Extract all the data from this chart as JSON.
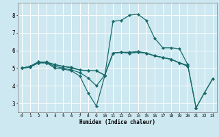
{
  "xlabel": "Humidex (Indice chaleur)",
  "ylabel": "",
  "background_color": "#cde8f0",
  "grid_color": "#ffffff",
  "line_color": "#1a6b6b",
  "xlim": [
    -0.5,
    23.5
  ],
  "ylim": [
    2.5,
    8.7
  ],
  "xticks": [
    0,
    1,
    2,
    3,
    4,
    5,
    6,
    7,
    8,
    9,
    10,
    11,
    12,
    13,
    14,
    15,
    16,
    17,
    18,
    19,
    20,
    21,
    22,
    23
  ],
  "yticks": [
    3,
    4,
    5,
    6,
    7,
    8
  ],
  "lines": [
    {
      "x": [
        0,
        1,
        2,
        3,
        4,
        5,
        6,
        7,
        8,
        9,
        10,
        11,
        12,
        13,
        14,
        15,
        16,
        17,
        18,
        19,
        20,
        21,
        22,
        23
      ],
      "y": [
        5.0,
        5.05,
        5.3,
        5.3,
        5.1,
        5.0,
        4.9,
        4.75,
        4.45,
        4.0,
        4.6,
        5.85,
        5.9,
        5.85,
        5.9,
        5.85,
        5.7,
        5.6,
        5.5,
        5.3,
        5.15,
        2.75,
        3.6,
        4.4
      ]
    },
    {
      "x": [
        0,
        1,
        2,
        3,
        4,
        5,
        6,
        7,
        8,
        9,
        10,
        11,
        12,
        13,
        14,
        15,
        16,
        17,
        18,
        19,
        20,
        21,
        22,
        23
      ],
      "y": [
        5.0,
        5.05,
        5.3,
        5.3,
        5.0,
        4.95,
        4.85,
        4.55,
        3.6,
        2.85,
        4.55,
        7.65,
        7.7,
        8.0,
        8.05,
        7.7,
        6.7,
        6.15,
        6.15,
        6.1,
        5.2,
        2.75,
        3.6,
        4.4
      ]
    },
    {
      "x": [
        0,
        1,
        2,
        3,
        4,
        5,
        6,
        7,
        8,
        9,
        10,
        11,
        12,
        13,
        14,
        15,
        16,
        17,
        18,
        19,
        20
      ],
      "y": [
        5.0,
        5.1,
        5.35,
        5.35,
        5.2,
        5.1,
        5.05,
        4.9,
        4.85,
        4.85,
        4.6,
        5.85,
        5.9,
        5.85,
        5.9,
        5.85,
        5.7,
        5.6,
        5.5,
        5.3,
        5.15
      ]
    },
    {
      "x": [
        0,
        1,
        2,
        3,
        4,
        5,
        6,
        7,
        8,
        9,
        10,
        11,
        12,
        13,
        14,
        15,
        16,
        17,
        18,
        19,
        20
      ],
      "y": [
        5.0,
        5.1,
        5.35,
        5.3,
        5.2,
        5.1,
        5.0,
        4.9,
        4.85,
        4.85,
        4.6,
        5.85,
        5.9,
        5.9,
        5.95,
        5.85,
        5.7,
        5.6,
        5.5,
        5.3,
        5.1
      ]
    }
  ],
  "marker": "D",
  "marker_size": 2.0,
  "linewidth": 0.9
}
